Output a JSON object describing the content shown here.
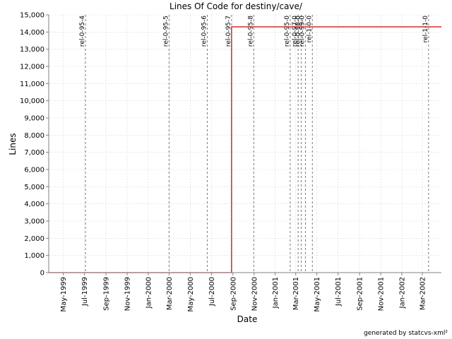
{
  "chart_data": {
    "type": "line",
    "title": "Lines Of Code for destiny/cave/",
    "xlabel": "Date",
    "ylabel": "Lines",
    "ylim": [
      0,
      15000
    ],
    "xlim": [
      "1999-03-20",
      "2002-04-25"
    ],
    "grid": true,
    "x_ticks": [
      "May-1999",
      "Jul-1999",
      "Sep-1999",
      "Nov-1999",
      "Jan-2000",
      "Mar-2000",
      "May-2000",
      "Jul-2000",
      "Sep-2000",
      "Nov-2000",
      "Jan-2001",
      "Mar-2001",
      "May-2001",
      "Jul-2001",
      "Sep-2001",
      "Nov-2001",
      "Jan-2002",
      "Mar-2002"
    ],
    "x_tick_dates": [
      "1999-05-01",
      "1999-07-01",
      "1999-09-01",
      "1999-11-01",
      "2000-01-01",
      "2000-03-01",
      "2000-05-01",
      "2000-07-01",
      "2000-09-01",
      "2000-11-01",
      "2001-01-01",
      "2001-03-01",
      "2001-05-01",
      "2001-07-01",
      "2001-09-01",
      "2001-11-01",
      "2002-01-01",
      "2002-03-01"
    ],
    "y_ticks": [
      0,
      1000,
      2000,
      3000,
      4000,
      5000,
      6000,
      7000,
      8000,
      9000,
      10000,
      11000,
      12000,
      13000,
      14000,
      15000
    ],
    "y_tick_labels": [
      "0",
      "1,000",
      "2,000",
      "3,000",
      "4,000",
      "5,000",
      "6,000",
      "7,000",
      "8,000",
      "9,000",
      "10,000",
      "11,000",
      "12,000",
      "13,000",
      "14,000",
      "15,000"
    ],
    "series": [
      {
        "color": "#cc0000",
        "x": [
          "1999-03-20",
          "2000-08-28",
          "2000-08-28",
          "2002-04-25"
        ],
        "y": [
          0,
          0,
          14300,
          14300
        ]
      }
    ],
    "markers": [
      {
        "label": "rel-0-95-4",
        "date": "1999-07-04"
      },
      {
        "label": "rel-0-95-5",
        "date": "2000-03-01"
      },
      {
        "label": "rel-0-95-6",
        "date": "2000-06-19"
      },
      {
        "label": "rel-0-95-7",
        "date": "2000-08-28"
      },
      {
        "label": "rel-0-95-8",
        "date": "2000-10-31"
      },
      {
        "label": "rel-0-95-0",
        "date": "2001-02-13"
      },
      {
        "label": "rel-0-97-0",
        "date": "2001-03-08"
      },
      {
        "label": "rel-0-98-0",
        "date": "2001-03-17"
      },
      {
        "label": "rel-0-99-0",
        "date": "2001-03-29"
      },
      {
        "label": "rel-1-0-0",
        "date": "2001-04-18"
      },
      {
        "label": "rel-1-1-0",
        "date": "2002-03-19"
      }
    ]
  },
  "footer": {
    "text": "generated by statcvs-xml²"
  }
}
